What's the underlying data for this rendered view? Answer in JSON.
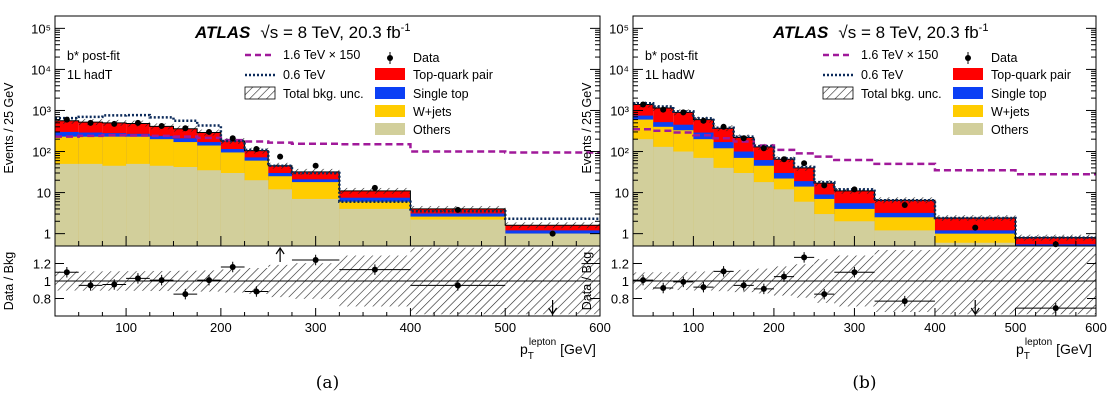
{
  "figure": {
    "experiment": "ATLAS",
    "energy_prefix": "√s = 8 TeV, 20.3 fb",
    "lumi_exp": "-1",
    "ylabel_main": "Events / 25 GeV",
    "ylabel_ratio": "Data / Bkg",
    "xlabel_main": "p",
    "xlabel_sub": "T",
    "xlabel_sup": "lepton",
    "xlabel_unit": "[GeV]"
  },
  "legend": {
    "signal_high": "1.6 TeV × 150",
    "signal_low": "0.6 TeV",
    "unc": "Total bkg. unc.",
    "data": "Data",
    "ttbar": "Top-quark pair",
    "single_top": "Single top",
    "wjets": "W+jets",
    "others": "Others"
  },
  "colors": {
    "ttbar": "#ff0000",
    "single_top": "#0b3ff5",
    "wjets": "#ffcc00",
    "others": "#d2cf9b",
    "signal_high": "#a0199a",
    "signal_low": "#0b2a5a"
  },
  "chart_data": [
    {
      "type": "bar",
      "panel_label": "(a)",
      "region_line1": "b* post-fit",
      "region_line2": "1L hadT",
      "bins": [
        25,
        50,
        75,
        100,
        125,
        150,
        175,
        200,
        225,
        250,
        275,
        325,
        400,
        500,
        600
      ],
      "stacks": {
        "others": [
          50,
          50,
          45,
          50,
          45,
          42,
          35,
          30,
          20,
          12,
          7,
          4,
          2.2,
          1.0
        ],
        "wjets": [
          230,
          230,
          230,
          230,
          200,
          170,
          140,
          95,
          60,
          25,
          18,
          6,
          2.6,
          1.0
        ],
        "single_top": [
          300,
          290,
          280,
          270,
          240,
          210,
          170,
          115,
          72,
          30,
          21,
          7.5,
          3.1,
          1.2
        ],
        "ttbar": [
          560,
          520,
          500,
          480,
          410,
          360,
          290,
          180,
          105,
          45,
          32,
          11,
          4.0,
          1.6
        ]
      },
      "signal_high": [
        230,
        240,
        250,
        245,
        240,
        230,
        215,
        190,
        175,
        165,
        155,
        150,
        100,
        95
      ],
      "signal_low": [
        650,
        700,
        760,
        770,
        680,
        560,
        430,
        180,
        110,
        45,
        30,
        6,
        3.5,
        2.3
      ],
      "data_x": [
        37.5,
        62.5,
        87.5,
        112.5,
        137.5,
        162.5,
        187.5,
        212.5,
        237.5,
        262.5,
        300,
        362.5,
        450,
        550
      ],
      "data_y": [
        600,
        500,
        470,
        500,
        420,
        370,
        300,
        210,
        115,
        75,
        45,
        13,
        3.8,
        1.0
      ],
      "ratio_x": [
        37.5,
        62.5,
        87.5,
        112.5,
        137.5,
        162.5,
        187.5,
        212.5,
        237.5,
        300,
        362.5,
        450
      ],
      "ratio_y": [
        1.1,
        0.95,
        0.96,
        1.03,
        1.01,
        0.85,
        1.01,
        1.16,
        0.88,
        1.24,
        1.13,
        0.95
      ],
      "ratio_arrows": [
        {
          "x": 262.5,
          "dir": "up"
        },
        {
          "x": 550,
          "dir": "down"
        }
      ],
      "xlim": [
        25,
        600
      ],
      "ylim": [
        0.5,
        200000
      ],
      "ratio_ylim": [
        0.6,
        1.4
      ],
      "log_y": true,
      "xticks": [
        100,
        200,
        300,
        400,
        500,
        600
      ],
      "yticks_label": [
        "1",
        "10",
        "10²",
        "10³",
        "10⁴",
        "10⁵"
      ],
      "ratio_ticks": [
        "0.8",
        "1",
        "1.2"
      ]
    },
    {
      "type": "bar",
      "panel_label": "(b)",
      "region_line1": "b* post-fit",
      "region_line2": "1L hadW",
      "bins": [
        25,
        50,
        75,
        100,
        125,
        150,
        175,
        200,
        225,
        250,
        275,
        325,
        400,
        500,
        600
      ],
      "stacks": {
        "others": [
          200,
          130,
          100,
          70,
          40,
          30,
          18,
          12,
          6,
          3,
          2,
          1.2,
          0.6,
          0.4
        ],
        "wjets": [
          600,
          400,
          330,
          200,
          120,
          70,
          45,
          22,
          14,
          7,
          4,
          2.5,
          1.0,
          0.5
        ],
        "single_top": [
          750,
          520,
          450,
          290,
          170,
          100,
          62,
          30,
          19,
          9,
          5.5,
          3.2,
          1.2,
          0.55
        ],
        "ttbar": [
          1400,
          1150,
          900,
          600,
          370,
          220,
          130,
          65,
          40,
          17,
          11,
          6.5,
          2.4,
          0.8
        ]
      },
      "signal_high": [
        350,
        320,
        290,
        250,
        210,
        175,
        140,
        110,
        90,
        75,
        62,
        50,
        35,
        28
      ],
      "signal_low": [
        1500,
        1250,
        950,
        640,
        380,
        230,
        135,
        68,
        42,
        18,
        12,
        6.5,
        2.4,
        0.8
      ],
      "data_x": [
        37.5,
        62.5,
        87.5,
        112.5,
        137.5,
        162.5,
        187.5,
        212.5,
        237.5,
        262.5,
        300,
        362.5,
        450,
        550
      ],
      "data_y": [
        1400,
        1050,
        900,
        560,
        400,
        210,
        120,
        65,
        52,
        15,
        12,
        5,
        1.4,
        0.55
      ],
      "ratio_x": [
        37.5,
        62.5,
        87.5,
        112.5,
        137.5,
        162.5,
        187.5,
        212.5,
        237.5,
        262.5,
        300,
        362.5,
        550
      ],
      "ratio_y": [
        1.01,
        0.92,
        0.99,
        0.93,
        1.11,
        0.95,
        0.91,
        1.05,
        1.27,
        0.85,
        1.1,
        0.77,
        0.69
      ],
      "ratio_arrows": [
        {
          "x": 450,
          "dir": "down"
        }
      ],
      "xlim": [
        25,
        600
      ],
      "ylim": [
        0.5,
        200000
      ],
      "ratio_ylim": [
        0.6,
        1.4
      ],
      "log_y": true,
      "xticks": [
        100,
        200,
        300,
        400,
        500,
        600
      ],
      "yticks_label": [
        "1",
        "10",
        "10²",
        "10³",
        "10⁴",
        "10⁵"
      ],
      "ratio_ticks": [
        "0.8",
        "1",
        "1.2"
      ]
    }
  ]
}
